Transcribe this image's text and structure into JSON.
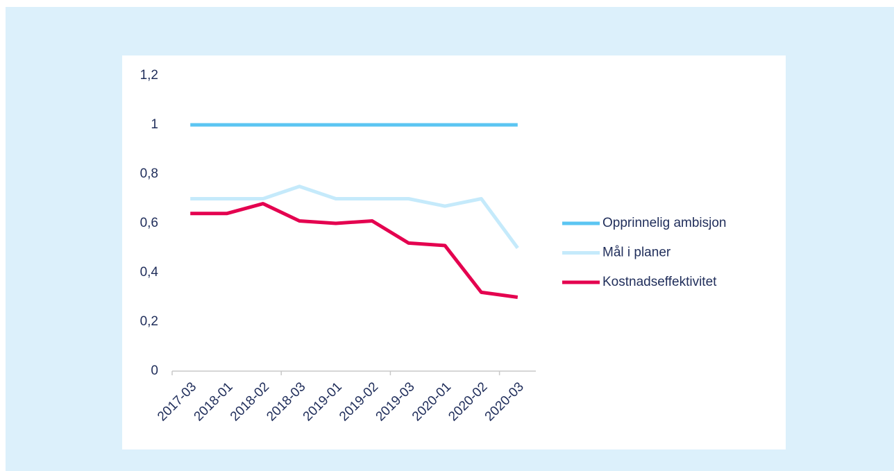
{
  "chart_data": {
    "type": "line",
    "categories": [
      "2017-03",
      "2018-01",
      "2018-02",
      "2018-03",
      "2019-01",
      "2019-02",
      "2019-03",
      "2020-01",
      "2020-02",
      "2020-03"
    ],
    "series": [
      {
        "name": "Opprinnelig ambisjon",
        "color": "#5bc5f2",
        "values": [
          1,
          1,
          1,
          1,
          1,
          1,
          1,
          1,
          1,
          1
        ]
      },
      {
        "name": "Mål i planer",
        "color": "#c5eafb",
        "values": [
          0.7,
          0.7,
          0.7,
          0.75,
          0.7,
          0.7,
          0.7,
          0.67,
          0.7,
          0.5
        ]
      },
      {
        "name": "Kostnadseffektivitet",
        "color": "#e4004f",
        "values": [
          0.64,
          0.64,
          0.68,
          0.61,
          0.6,
          0.61,
          0.52,
          0.51,
          0.32,
          0.3
        ]
      }
    ],
    "ylim": [
      0,
      1.2
    ],
    "yticks": [
      0,
      {
        "value": 0.2,
        "label": "0,2"
      },
      {
        "value": 0.4,
        "label": "0,4"
      },
      {
        "value": 0.6,
        "label": "0,6"
      },
      {
        "value": 0.8,
        "label": "0,8"
      },
      1,
      {
        "value": 1.2,
        "label": "1,2"
      }
    ],
    "grid": false,
    "legend": "right"
  }
}
